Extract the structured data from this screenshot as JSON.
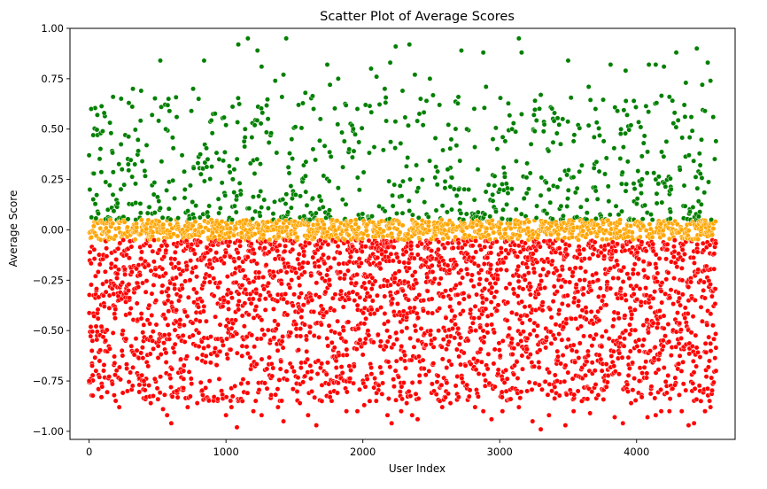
{
  "chart_data": {
    "type": "scatter",
    "title": "Scatter Plot of Average Scores",
    "xlabel": "User Index",
    "ylabel": "Average Score",
    "xlim": [
      -140,
      4720
    ],
    "ylim": [
      -1.04,
      1.0
    ],
    "xticks": [
      0,
      1000,
      2000,
      3000,
      4000
    ],
    "xtick_labels": [
      "0",
      "1000",
      "2000",
      "3000",
      "4000"
    ],
    "yticks": [
      -1.0,
      -0.75,
      -0.5,
      -0.25,
      0.0,
      0.25,
      0.5,
      0.75,
      1.0
    ],
    "ytick_labels": [
      "−1.00",
      "−0.75",
      "−0.50",
      "−0.25",
      "0.00",
      "0.25",
      "0.50",
      "0.75",
      "1.00"
    ],
    "grid": false,
    "legend": "none",
    "point_count_approx": 4600,
    "series": [
      {
        "color": "#008000",
        "y_range": [
          0.05,
          0.95
        ],
        "points": [
          [
            0,
            0.37
          ],
          [
            15,
            0.6
          ],
          [
            30,
            0.47
          ],
          [
            60,
            0.57
          ],
          [
            110,
            0.58
          ],
          [
            160,
            0.48
          ],
          [
            175,
            0.66
          ],
          [
            240,
            0.3
          ],
          [
            290,
            0.63
          ],
          [
            320,
            0.7
          ],
          [
            380,
            0.69
          ],
          [
            420,
            0.42
          ],
          [
            460,
            0.57
          ],
          [
            520,
            0.84
          ],
          [
            560,
            0.5
          ],
          [
            580,
            0.65
          ],
          [
            640,
            0.56
          ],
          [
            700,
            0.2
          ],
          [
            760,
            0.7
          ],
          [
            800,
            0.65
          ],
          [
            840,
            0.84
          ],
          [
            900,
            0.48
          ],
          [
            950,
            0.35
          ],
          [
            1000,
            0.52
          ],
          [
            1060,
            0.3
          ],
          [
            1090,
            0.92
          ],
          [
            1140,
            0.5
          ],
          [
            1160,
            0.95
          ],
          [
            1230,
            0.89
          ],
          [
            1260,
            0.81
          ],
          [
            1330,
            0.48
          ],
          [
            1360,
            0.74
          ],
          [
            1420,
            0.77
          ],
          [
            1440,
            0.95
          ],
          [
            1480,
            0.45
          ],
          [
            1530,
            0.62
          ],
          [
            1580,
            0.68
          ],
          [
            1640,
            0.6
          ],
          [
            1690,
            0.55
          ],
          [
            1740,
            0.82
          ],
          [
            1760,
            0.72
          ],
          [
            1820,
            0.75
          ],
          [
            1900,
            0.4
          ],
          [
            1960,
            0.6
          ],
          [
            2020,
            0.62
          ],
          [
            2060,
            0.8
          ],
          [
            2100,
            0.76
          ],
          [
            2160,
            0.7
          ],
          [
            2200,
            0.83
          ],
          [
            2240,
            0.91
          ],
          [
            2290,
            0.69
          ],
          [
            2340,
            0.92
          ],
          [
            2380,
            0.77
          ],
          [
            2440,
            0.52
          ],
          [
            2490,
            0.75
          ],
          [
            2560,
            0.62
          ],
          [
            2620,
            0.3
          ],
          [
            2700,
            0.2
          ],
          [
            2720,
            0.89
          ],
          [
            2760,
            0.5
          ],
          [
            2840,
            0.3
          ],
          [
            2880,
            0.88
          ],
          [
            2900,
            0.71
          ],
          [
            2950,
            0.45
          ],
          [
            3000,
            0.2
          ],
          [
            3040,
            0.44
          ],
          [
            3090,
            0.5
          ],
          [
            3140,
            0.95
          ],
          [
            3160,
            0.88
          ],
          [
            3200,
            0.33
          ],
          [
            3250,
            0.57
          ],
          [
            3300,
            0.67
          ],
          [
            3360,
            0.2
          ],
          [
            3400,
            0.58
          ],
          [
            3460,
            0.55
          ],
          [
            3500,
            0.84
          ],
          [
            3540,
            0.44
          ],
          [
            3600,
            0.32
          ],
          [
            3650,
            0.71
          ],
          [
            3700,
            0.6
          ],
          [
            3760,
            0.44
          ],
          [
            3810,
            0.82
          ],
          [
            3860,
            0.59
          ],
          [
            3920,
            0.79
          ],
          [
            3980,
            0.64
          ],
          [
            4030,
            0.51
          ],
          [
            4090,
            0.82
          ],
          [
            4140,
            0.82
          ],
          [
            4200,
            0.81
          ],
          [
            4240,
            0.66
          ],
          [
            4290,
            0.88
          ],
          [
            4360,
            0.73
          ],
          [
            4400,
            0.56
          ],
          [
            4440,
            0.9
          ],
          [
            4480,
            0.72
          ],
          [
            4500,
            0.59
          ],
          [
            4520,
            0.83
          ],
          [
            4540,
            0.74
          ],
          [
            4560,
            0.56
          ],
          [
            4580,
            0.44
          ]
        ]
      },
      {
        "color": "#FFA500",
        "y_range": [
          -0.05,
          0.05
        ]
      },
      {
        "color": "#FF0000",
        "y_range": [
          -0.98,
          -0.05
        ],
        "points": [
          [
            0,
            -0.75
          ],
          [
            20,
            -0.6
          ],
          [
            50,
            -0.7
          ],
          [
            90,
            -0.48
          ],
          [
            120,
            -0.55
          ],
          [
            190,
            -0.72
          ],
          [
            220,
            -0.88
          ],
          [
            280,
            -0.8
          ],
          [
            330,
            -0.62
          ],
          [
            400,
            -0.75
          ],
          [
            450,
            -0.86
          ],
          [
            480,
            -0.74
          ],
          [
            540,
            -0.89
          ],
          [
            570,
            -0.92
          ],
          [
            600,
            -0.96
          ],
          [
            640,
            -0.8
          ],
          [
            690,
            -0.7
          ],
          [
            720,
            -0.88
          ],
          [
            790,
            -0.86
          ],
          [
            830,
            -0.82
          ],
          [
            880,
            -0.75
          ],
          [
            940,
            -0.84
          ],
          [
            1000,
            -0.92
          ],
          [
            1040,
            -0.88
          ],
          [
            1080,
            -0.98
          ],
          [
            1120,
            -0.85
          ],
          [
            1160,
            -0.76
          ],
          [
            1200,
            -0.9
          ],
          [
            1260,
            -0.92
          ],
          [
            1330,
            -0.82
          ],
          [
            1380,
            -0.88
          ],
          [
            1420,
            -0.95
          ],
          [
            1490,
            -0.79
          ],
          [
            1540,
            -0.86
          ],
          [
            1600,
            -0.92
          ],
          [
            1660,
            -0.97
          ],
          [
            1700,
            -0.85
          ],
          [
            1760,
            -0.83
          ],
          [
            1820,
            -0.76
          ],
          [
            1880,
            -0.9
          ],
          [
            1960,
            -0.9
          ],
          [
            2010,
            -0.87
          ],
          [
            2050,
            -0.85
          ],
          [
            2100,
            -0.81
          ],
          [
            2180,
            -0.92
          ],
          [
            2210,
            -0.96
          ],
          [
            2280,
            -0.9
          ],
          [
            2320,
            -0.86
          ],
          [
            2360,
            -0.92
          ],
          [
            2400,
            -0.94
          ],
          [
            2460,
            -0.72
          ],
          [
            2520,
            -0.8
          ],
          [
            2580,
            -0.88
          ],
          [
            2640,
            -0.86
          ],
          [
            2700,
            -0.83
          ],
          [
            2760,
            -0.77
          ],
          [
            2820,
            -0.88
          ],
          [
            2880,
            -0.9
          ],
          [
            2940,
            -0.94
          ],
          [
            3020,
            -0.9
          ],
          [
            3080,
            -0.84
          ],
          [
            3140,
            -0.88
          ],
          [
            3200,
            -0.8
          ],
          [
            3240,
            -0.95
          ],
          [
            3300,
            -0.99
          ],
          [
            3360,
            -0.92
          ],
          [
            3420,
            -0.75
          ],
          [
            3480,
            -0.97
          ],
          [
            3540,
            -0.9
          ],
          [
            3600,
            -0.85
          ],
          [
            3660,
            -0.91
          ],
          [
            3720,
            -0.82
          ],
          [
            3780,
            -0.78
          ],
          [
            3840,
            -0.93
          ],
          [
            3900,
            -0.96
          ],
          [
            3960,
            -0.86
          ],
          [
            4020,
            -0.75
          ],
          [
            4080,
            -0.93
          ],
          [
            4140,
            -0.92
          ],
          [
            4180,
            -0.9
          ],
          [
            4240,
            -0.9
          ],
          [
            4280,
            -0.77
          ],
          [
            4330,
            -0.9
          ],
          [
            4380,
            -0.97
          ],
          [
            4420,
            -0.96
          ],
          [
            4470,
            -0.85
          ],
          [
            4500,
            -0.9
          ],
          [
            4540,
            -0.88
          ],
          [
            4580,
            -0.7
          ]
        ]
      }
    ]
  }
}
